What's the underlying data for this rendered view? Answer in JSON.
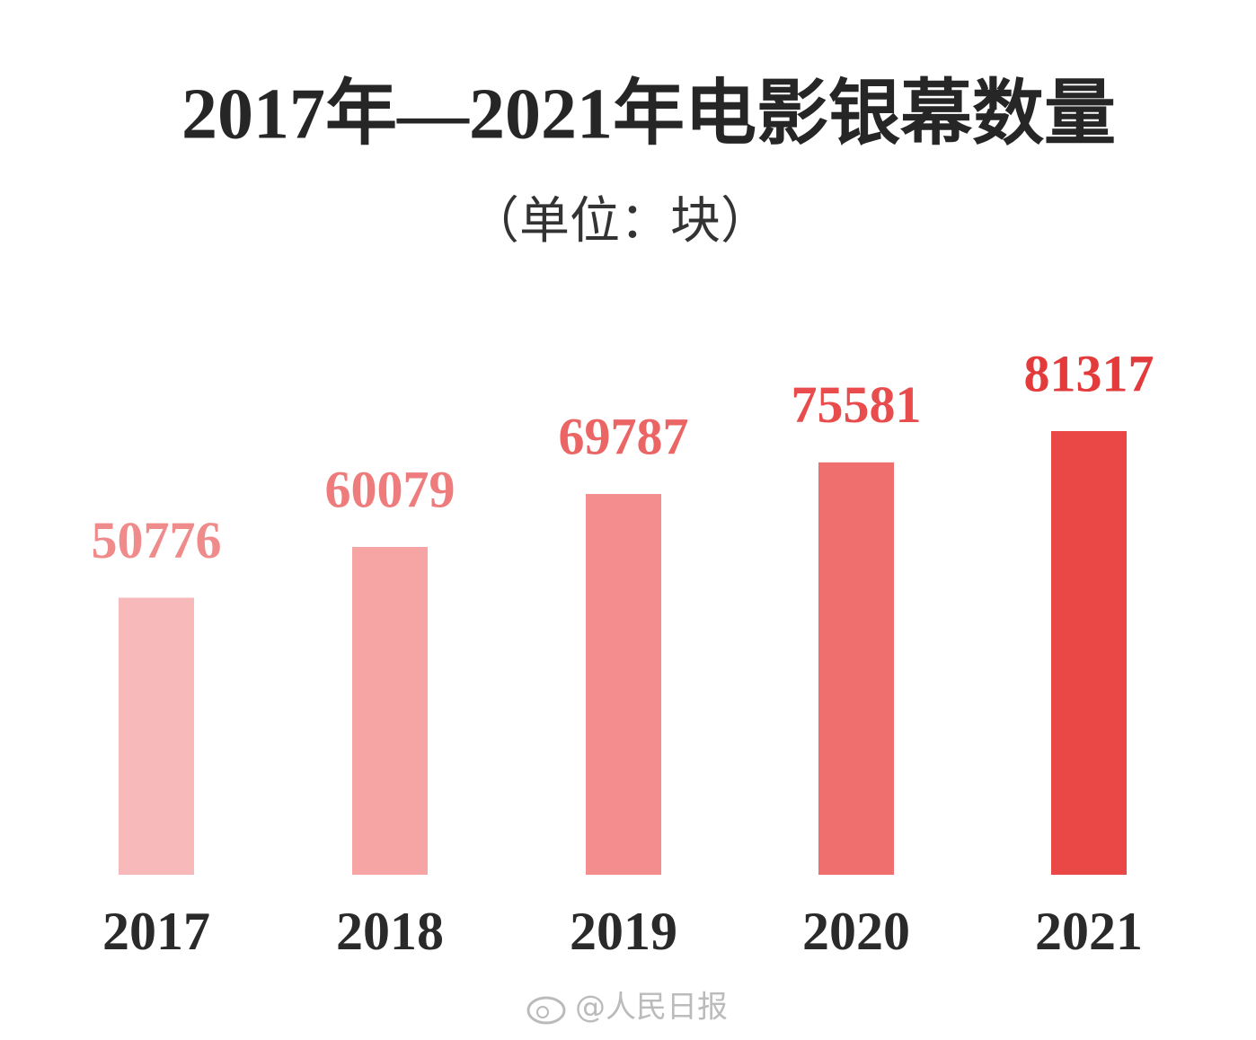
{
  "chart_data": {
    "type": "bar",
    "title": "2017年—2021年电影银幕数量",
    "subtitle": "（单位：块）",
    "categories": [
      "2017",
      "2018",
      "2019",
      "2020",
      "2021"
    ],
    "values": [
      50776,
      60079,
      69787,
      75581,
      81317
    ],
    "colors": [
      "#f8b9ba",
      "#f6a4a4",
      "#f38d8e",
      "#ef6e6e",
      "#ea4747"
    ],
    "label_colors": [
      "#f08b8b",
      "#ef7c7c",
      "#ec6565",
      "#e84c4c",
      "#e33b3b"
    ],
    "watermark": "@人民日报"
  }
}
